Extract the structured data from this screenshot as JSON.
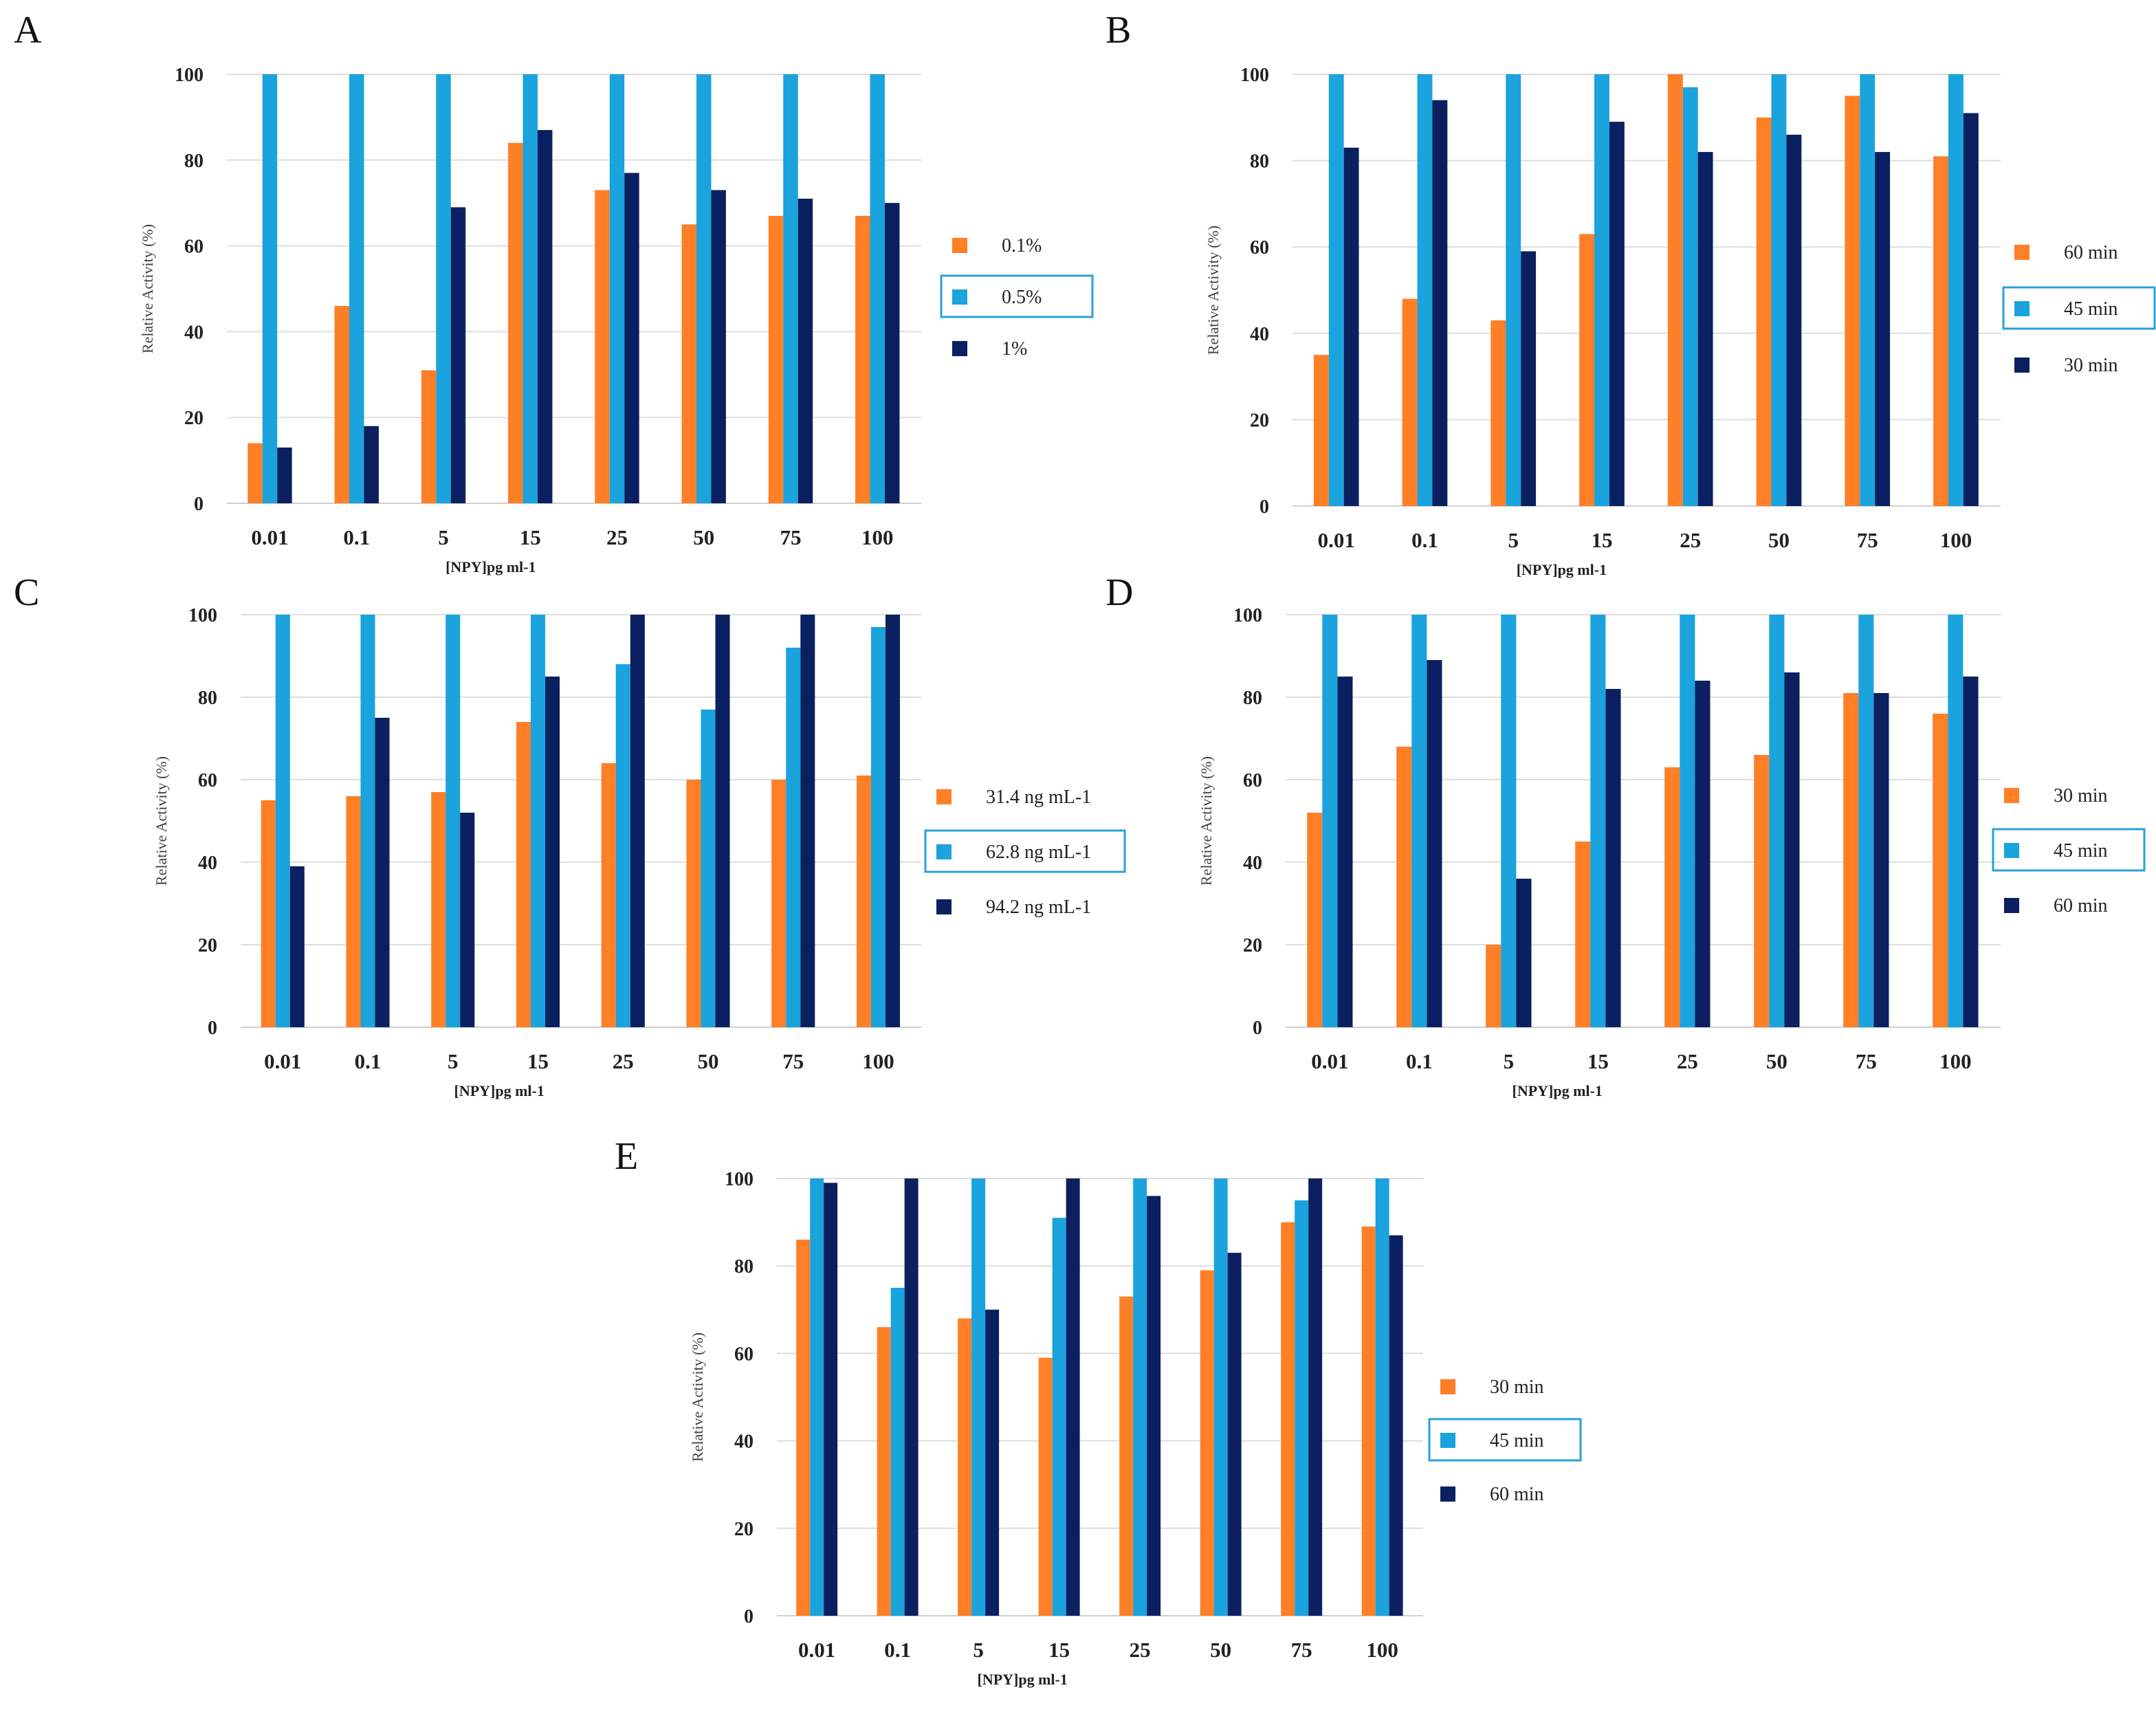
{
  "colors": {
    "orange": "#ff7f27",
    "blue": "#1aa3dd",
    "navy": "#0b2060"
  },
  "chart_data": [
    {
      "panel": "A",
      "type": "bar",
      "categories": [
        "0.01",
        "0.1",
        "5",
        "15",
        "25",
        "50",
        "75",
        "100"
      ],
      "series": [
        {
          "name": "0.1%",
          "values": [
            14,
            46,
            31,
            84,
            73,
            65,
            67,
            67
          ]
        },
        {
          "name": "0.5%",
          "values": [
            100,
            100,
            100,
            100,
            100,
            100,
            100,
            100
          ]
        },
        {
          "name": "1%",
          "values": [
            13,
            18,
            69,
            87,
            77,
            73,
            71,
            70
          ]
        }
      ],
      "highlighted_series": 1,
      "xlabel": "[NPY]pg ml-1",
      "ylabel": "Relative Activity (%)",
      "ylim": [
        0,
        100
      ],
      "yticks": [
        "0",
        "20",
        "40",
        "60",
        "80",
        "100"
      ],
      "grid": true,
      "legend": "right"
    },
    {
      "panel": "B",
      "type": "bar",
      "categories": [
        "0.01",
        "0.1",
        "5",
        "15",
        "25",
        "50",
        "75",
        "100"
      ],
      "series": [
        {
          "name": "60 min",
          "values": [
            35,
            48,
            43,
            63,
            100,
            90,
            95,
            81
          ]
        },
        {
          "name": "45 min",
          "values": [
            100,
            100,
            100,
            100,
            97,
            100,
            100,
            100
          ]
        },
        {
          "name": "30 min",
          "values": [
            83,
            94,
            59,
            89,
            82,
            86,
            82,
            91
          ]
        }
      ],
      "highlighted_series": 1,
      "xlabel": "[NPY]pg ml-1",
      "ylabel": "Relative Activity (%)",
      "ylim": [
        0,
        100
      ],
      "yticks": [
        "0",
        "20",
        "40",
        "60",
        "80",
        "100"
      ],
      "grid": true,
      "legend": "right"
    },
    {
      "panel": "C",
      "type": "bar",
      "categories": [
        "0.01",
        "0.1",
        "5",
        "15",
        "25",
        "50",
        "75",
        "100"
      ],
      "series": [
        {
          "name": "31.4 ng mL-1",
          "values": [
            55,
            56,
            57,
            74,
            64,
            60,
            60,
            61
          ]
        },
        {
          "name": "62.8 ng mL-1",
          "values": [
            100,
            100,
            100,
            100,
            88,
            77,
            92,
            97
          ]
        },
        {
          "name": "94.2 ng mL-1",
          "values": [
            39,
            75,
            52,
            85,
            100,
            100,
            100,
            100
          ]
        }
      ],
      "highlighted_series": 1,
      "xlabel": "[NPY]pg ml-1",
      "ylabel": "Relative Activity (%)",
      "ylim": [
        0,
        100
      ],
      "yticks": [
        "0",
        "20",
        "40",
        "60",
        "80",
        "100"
      ],
      "grid": true,
      "legend": "right"
    },
    {
      "panel": "D",
      "type": "bar",
      "categories": [
        "0.01",
        "0.1",
        "5",
        "15",
        "25",
        "50",
        "75",
        "100"
      ],
      "series": [
        {
          "name": "30 min",
          "values": [
            52,
            68,
            20,
            45,
            63,
            66,
            81,
            76
          ]
        },
        {
          "name": "45 min",
          "values": [
            100,
            100,
            100,
            100,
            100,
            100,
            100,
            100
          ]
        },
        {
          "name": "60 min",
          "values": [
            85,
            89,
            36,
            82,
            84,
            86,
            81,
            85
          ]
        }
      ],
      "highlighted_series": 1,
      "xlabel": "[NPY]pg ml-1",
      "ylabel": "Relative Activity (%)",
      "ylim": [
        0,
        100
      ],
      "yticks": [
        "0",
        "20",
        "40",
        "60",
        "80",
        "100"
      ],
      "grid": true,
      "legend": "right"
    },
    {
      "panel": "E",
      "type": "bar",
      "categories": [
        "0.01",
        "0.1",
        "5",
        "15",
        "25",
        "50",
        "75",
        "100"
      ],
      "series": [
        {
          "name": "30 min",
          "values": [
            86,
            66,
            68,
            59,
            73,
            79,
            90,
            89
          ]
        },
        {
          "name": "45 min",
          "values": [
            100,
            75,
            100,
            91,
            100,
            100,
            95,
            100
          ]
        },
        {
          "name": "60 min",
          "values": [
            99,
            100,
            70,
            100,
            96,
            83,
            100,
            87
          ]
        }
      ],
      "highlighted_series": 1,
      "xlabel": "[NPY]pg ml-1",
      "ylabel": "Relative Activity (%)",
      "ylim": [
        0,
        100
      ],
      "yticks": [
        "0",
        "20",
        "40",
        "60",
        "80",
        "100"
      ],
      "grid": true,
      "legend": "right"
    }
  ]
}
